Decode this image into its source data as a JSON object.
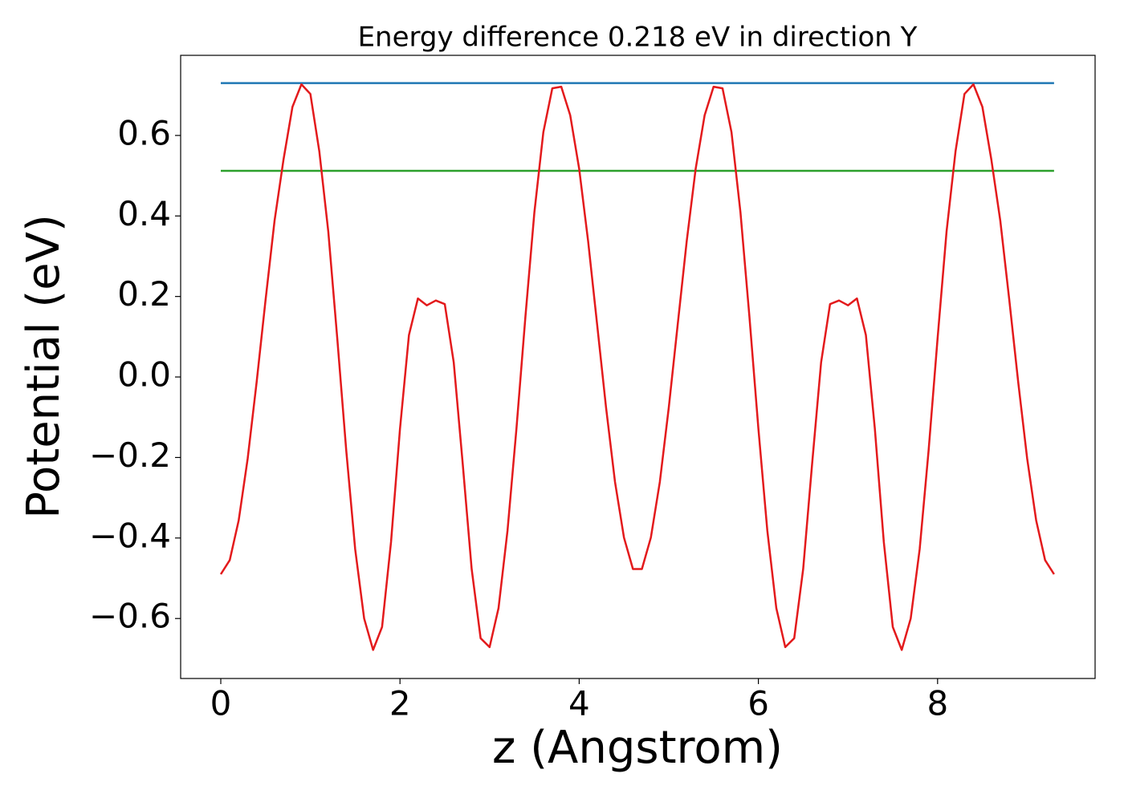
{
  "chart_data": {
    "type": "line",
    "title": "Energy difference 0.218 eV in direction Y",
    "xlabel": "z (Angstrom)",
    "ylabel": "Potential (eV)",
    "xlim": [
      -0.448,
      9.758
    ],
    "ylim": [
      -0.749,
      0.799
    ],
    "xticks": [
      0,
      2,
      4,
      6,
      8
    ],
    "yticks": [
      {
        "value": -0.6,
        "label": "−0.6"
      },
      {
        "value": -0.4,
        "label": "−0.4"
      },
      {
        "value": -0.2,
        "label": "−0.2"
      },
      {
        "value": 0,
        "label": "0.0"
      },
      0.2,
      0.4,
      0.6
    ],
    "series": [
      {
        "color": "#e31a1c",
        "x": [
          0,
          0.1,
          0.2,
          0.3,
          0.4,
          0.5,
          0.6,
          0.7,
          0.8,
          0.9,
          1.0,
          1.1,
          1.2,
          1.3,
          1.4,
          1.5,
          1.6,
          1.7,
          1.8,
          1.9,
          2.0,
          2.1,
          2.2,
          2.3,
          2.4,
          2.5,
          2.6,
          2.7,
          2.8,
          2.9,
          3.0,
          3.1,
          3.2,
          3.3,
          3.4,
          3.5,
          3.6,
          3.7,
          3.8,
          3.9,
          4.0,
          4.1,
          4.2,
          4.3,
          4.4,
          4.5,
          4.6,
          4.7,
          4.8,
          4.9,
          5.0,
          5.1,
          5.2,
          5.3,
          5.4,
          5.5,
          5.6,
          5.7,
          5.8,
          5.9,
          6.0,
          6.1,
          6.2,
          6.3,
          6.4,
          6.5,
          6.6,
          6.7,
          6.8,
          6.9,
          7.0,
          7.1,
          7.2,
          7.3,
          7.4,
          7.5,
          7.6,
          7.7,
          7.8,
          7.9,
          8.0,
          8.1,
          8.2,
          8.3,
          8.4,
          8.5,
          8.6,
          8.7,
          8.8,
          8.9,
          9.0,
          9.1,
          9.2,
          9.3
        ],
        "values": [
          -0.49,
          -0.455,
          -0.356,
          -0.203,
          -0.013,
          0.192,
          0.388,
          0.54,
          0.671,
          0.727,
          0.703,
          0.56,
          0.361,
          0.096,
          -0.182,
          -0.428,
          -0.6,
          -0.678,
          -0.621,
          -0.41,
          -0.129,
          0.104,
          0.195,
          0.178,
          0.19,
          0.181,
          0.036,
          -0.215,
          -0.477,
          -0.649,
          -0.671,
          -0.574,
          -0.382,
          -0.128,
          0.15,
          0.409,
          0.608,
          0.717,
          0.721,
          0.65,
          0.517,
          0.337,
          0.131,
          -0.076,
          -0.261,
          -0.399,
          -0.477,
          -0.477,
          -0.399,
          -0.261,
          -0.076,
          0.131,
          0.337,
          0.517,
          0.65,
          0.721,
          0.717,
          0.608,
          0.409,
          0.15,
          -0.128,
          -0.382,
          -0.574,
          -0.671,
          -0.649,
          -0.477,
          -0.215,
          0.036,
          0.181,
          0.19,
          0.178,
          0.195,
          0.104,
          -0.129,
          -0.41,
          -0.621,
          -0.678,
          -0.6,
          -0.428,
          -0.182,
          0.096,
          0.361,
          0.56,
          0.703,
          0.727,
          0.671,
          0.54,
          0.388,
          0.192,
          -0.013,
          -0.203,
          -0.356,
          -0.455,
          -0.49
        ]
      },
      {
        "color": "#1f77b4",
        "x": [
          0,
          9.3
        ],
        "values": [
          0.73,
          0.73
        ]
      },
      {
        "color": "#2ca02c",
        "x": [
          0,
          9.3
        ],
        "values": [
          0.512,
          0.512
        ]
      }
    ]
  }
}
